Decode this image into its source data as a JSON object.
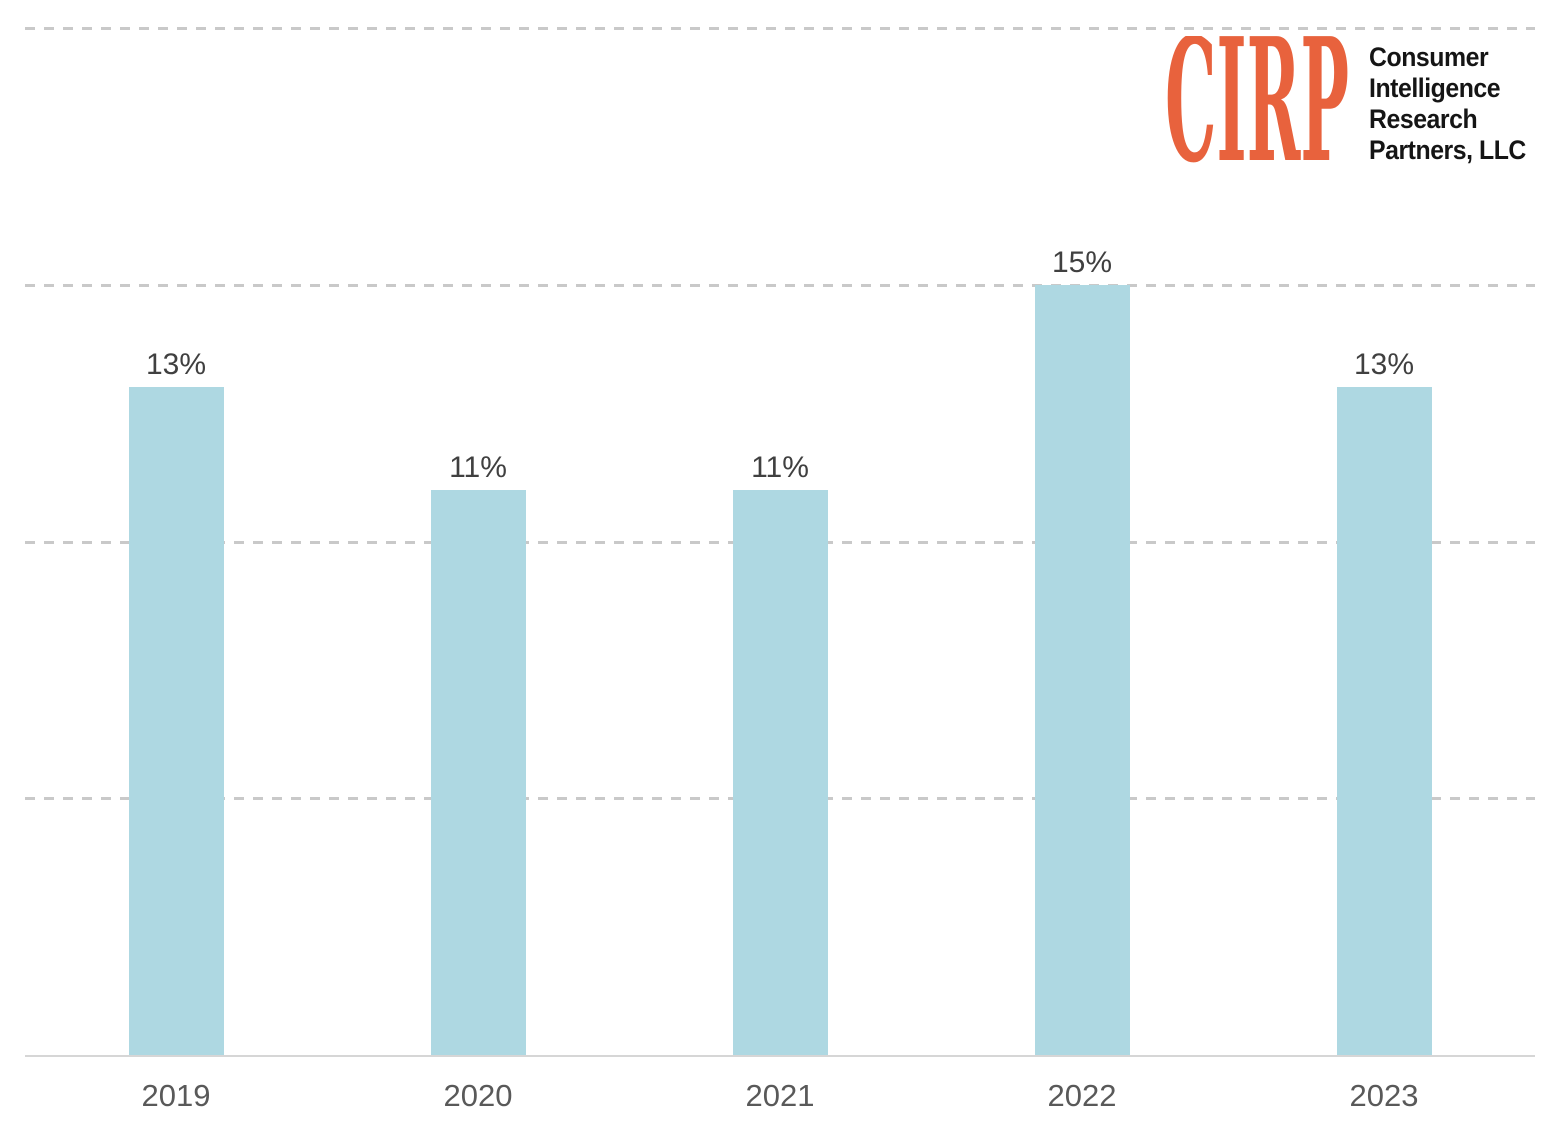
{
  "logo": {
    "acronym": "CIRP",
    "name_lines": [
      "Consumer",
      "Intelligence",
      "Research",
      "Partners, LLC"
    ],
    "accent_color": "#e8623d",
    "name_color": "#151515"
  },
  "chart_data": {
    "type": "bar",
    "title": "",
    "xlabel": "",
    "ylabel": "",
    "categories": [
      "2019",
      "2020",
      "2021",
      "2022",
      "2023"
    ],
    "values": [
      13,
      11,
      11,
      15,
      13
    ],
    "data_labels": [
      "13%",
      "11%",
      "11%",
      "15%",
      "13%"
    ],
    "ylim": [
      0,
      20
    ],
    "gridline_step": 5,
    "grid": "horizontal-dashed",
    "y_tick_labels_visible": false,
    "legend": "none",
    "bar_color": "#aed8e2",
    "value_label_color": "#404040",
    "axis_label_color": "#595959",
    "gridline_color": "#c9c9c9",
    "axis_line_color": "#d6d6d6"
  }
}
